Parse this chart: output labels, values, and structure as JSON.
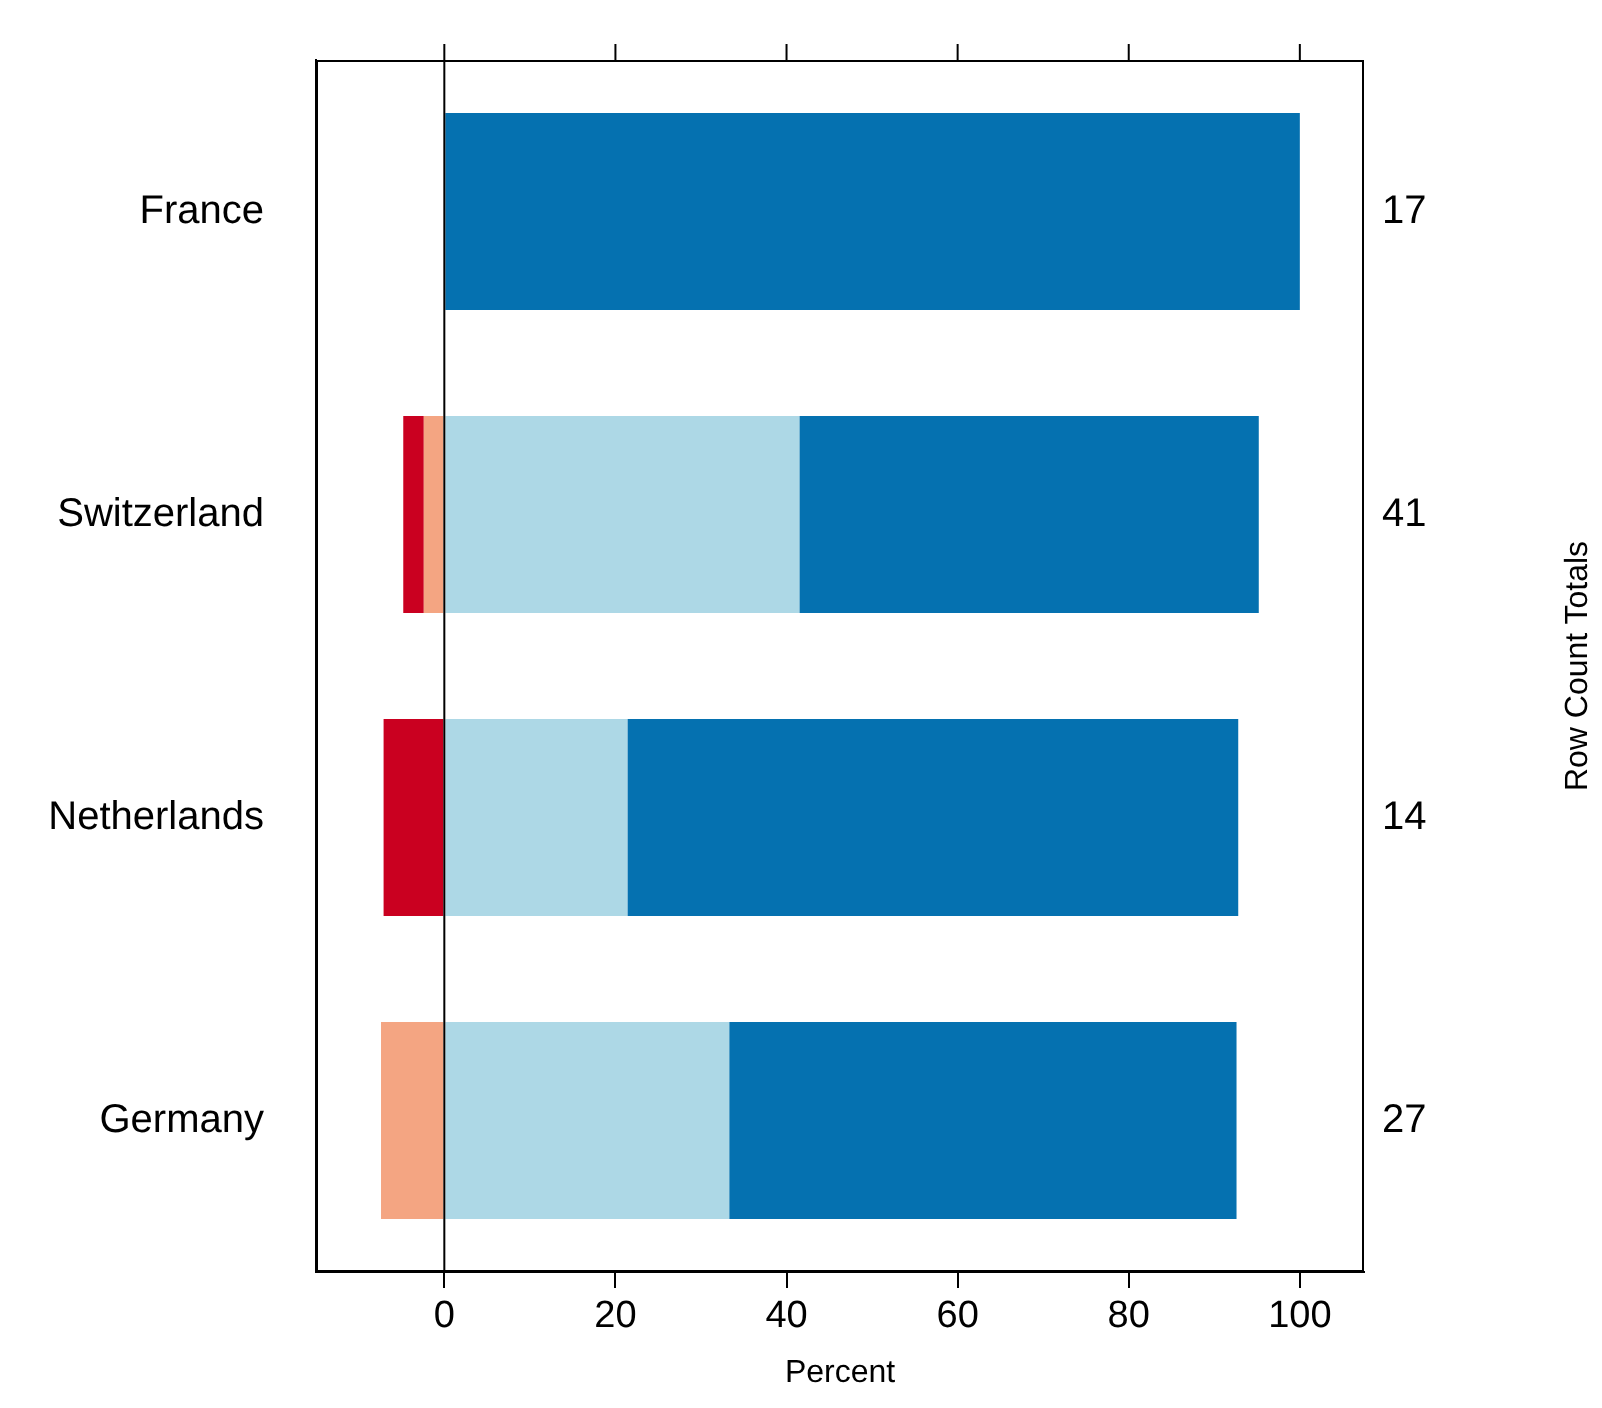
{
  "chart_data": {
    "type": "bar",
    "orientation": "horizontal",
    "stacked": true,
    "xlabel": "Percent",
    "categories": [
      "France",
      "Switzerland",
      "Netherlands",
      "Germany"
    ],
    "series": [
      {
        "color": "#f4a582",
        "values": [
          null,
          -2.4,
          null,
          -7.4
        ]
      },
      {
        "color": "#ca0020",
        "values": [
          null,
          -2.4,
          -7.1,
          null
        ]
      },
      {
        "color": "#add8e6",
        "values": [
          null,
          41.5,
          21.4,
          33.3
        ]
      },
      {
        "color": "#0571b0",
        "values": [
          100,
          53.7,
          71.4,
          59.3
        ]
      }
    ],
    "annotations": [
      "Row Count Totals",
      "17",
      "41",
      "14",
      "27"
    ],
    "xlim": [
      -15,
      107.5
    ],
    "xticks": [
      0,
      20,
      40,
      60,
      80,
      100
    ],
    "ref_lines": [
      {
        "axis": "x",
        "value": 0,
        "color": "#000000"
      }
    ],
    "grid": false,
    "legend": false
  }
}
